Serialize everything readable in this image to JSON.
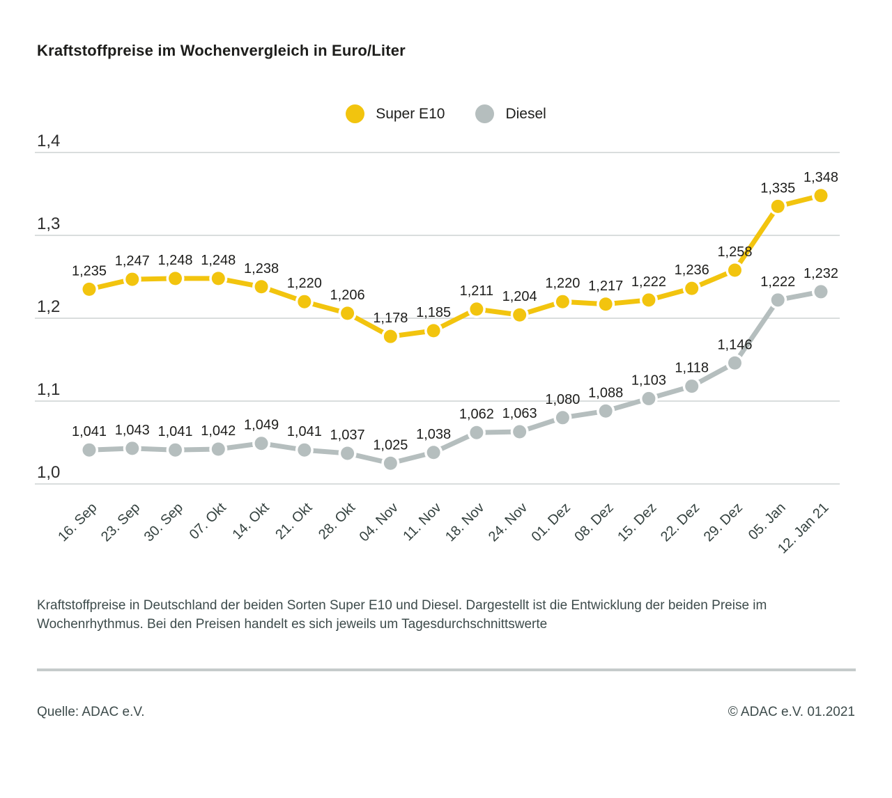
{
  "title": "Kraftstoffpreise im Wochenvergleich in Euro/Liter",
  "caption": "Kraftstoffpreise in Deutschland der beiden Sorten Super E10 und Diesel. Dargestellt ist die Entwicklung der beiden Preise im Wochenrhythmus. Bei den Preisen handelt es sich jeweils um Tagesdurchschnittswerte",
  "footer": {
    "source": "Quelle: ADAC e.V.",
    "copyright": "© ADAC e.V. 01.2021"
  },
  "colors": {
    "super_e10": "#f2c40e",
    "diesel": "#b5bebe",
    "grid": "#d9dddd",
    "tick_text": "#33403e",
    "value_text": "#1d1d1b"
  },
  "chart_data": {
    "type": "line",
    "title": "Kraftstoffpreise im Wochenvergleich in Euro/Liter",
    "categories": [
      "16. Sep",
      "23. Sep",
      "30. Sep",
      "07. Okt",
      "14. Okt",
      "21. Okt",
      "28. Okt",
      "04. Nov",
      "11. Nov",
      "18. Nov",
      "24. Nov",
      "01. Dez",
      "08. Dez",
      "15. Dez",
      "22. Dez",
      "29. Dez",
      "05. Jan",
      "12. Jan 21"
    ],
    "series": [
      {
        "name": "Super E10",
        "color": "#f2c40e",
        "values": [
          1.235,
          1.247,
          1.248,
          1.248,
          1.238,
          1.22,
          1.206,
          1.178,
          1.185,
          1.211,
          1.204,
          1.22,
          1.217,
          1.222,
          1.236,
          1.258,
          1.335,
          1.348
        ]
      },
      {
        "name": "Diesel",
        "color": "#b5bebe",
        "values": [
          1.041,
          1.043,
          1.041,
          1.042,
          1.049,
          1.041,
          1.037,
          1.025,
          1.038,
          1.062,
          1.063,
          1.08,
          1.088,
          1.103,
          1.118,
          1.146,
          1.222,
          1.232
        ]
      }
    ],
    "ylabel": "Euro/Liter",
    "xlabel": "",
    "ylim": [
      1.0,
      1.4
    ],
    "yticks": [
      1.0,
      1.1,
      1.2,
      1.3,
      1.4
    ],
    "ytick_labels": [
      "1,0",
      "1,1",
      "1,2",
      "1,3",
      "1,4"
    ],
    "grid": true,
    "legend_position": "top",
    "value_labels": true,
    "decimal_comma": true
  }
}
